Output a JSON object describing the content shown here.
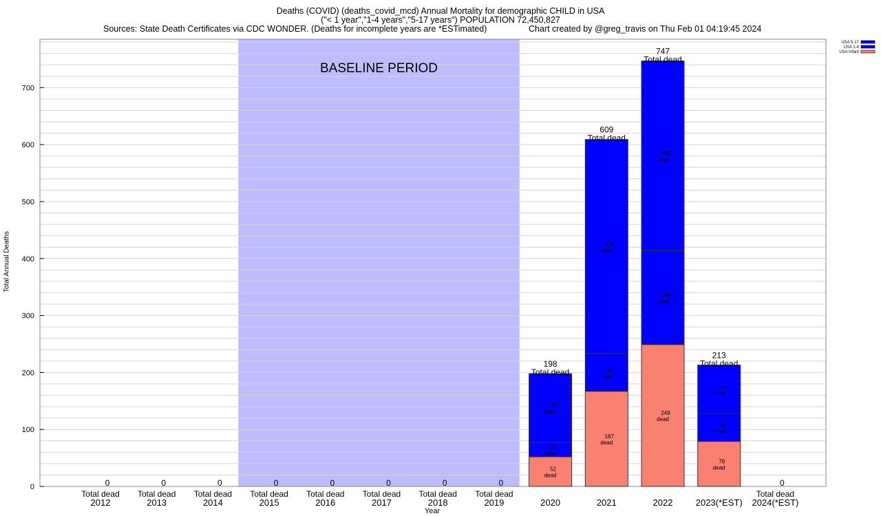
{
  "chart_data": {
    "type": "bar",
    "stacked": true,
    "title": "Deaths (COVID) (deaths_covid_mcd) Annual Mortality for demographic CHILD in USA",
    "subtitle": "(\"< 1 year\",\"1-4 years\",\"5-17 years\") POPULATION 72,450,827",
    "source": "Sources: State Death Certificates via CDC WONDER. (Deaths for incomplete years are *ESTimated)",
    "credit": "Chart created by @greg_travis on Thu Feb 01 04:19:45 2024",
    "xlabel": "Year",
    "ylabel": "Total Annual Deaths",
    "ylim": [
      0,
      785
    ],
    "yticks": [
      0,
      100,
      200,
      300,
      400,
      500,
      600,
      700
    ],
    "grid": true,
    "legend_position": "top-right",
    "categories": [
      "2012",
      "2013",
      "2014",
      "2015",
      "2016",
      "2017",
      "2018",
      "2019",
      "2020",
      "2021",
      "2022",
      "2023(*EST)",
      "2024(*EST)"
    ],
    "series": [
      {
        "name": "USA Infant",
        "color": "#fa8072",
        "values": [
          0,
          0,
          0,
          0,
          0,
          0,
          0,
          0,
          52,
          167,
          249,
          79,
          0
        ]
      },
      {
        "name": "USA 1-4",
        "color": "#0000ff",
        "values": [
          0,
          0,
          0,
          0,
          0,
          0,
          0,
          0,
          25,
          66,
          165,
          49,
          0
        ]
      },
      {
        "name": "USA 5-17",
        "color": "#0000ff",
        "values": [
          0,
          0,
          0,
          0,
          0,
          0,
          0,
          0,
          121,
          376,
          333,
          85,
          0
        ]
      }
    ],
    "totals": [
      0,
      0,
      0,
      0,
      0,
      0,
      0,
      0,
      198,
      609,
      747,
      213,
      0
    ],
    "total_label": "Total dead",
    "segment_suffix": "dead",
    "annotation": {
      "text": "BASELINE PERIOD",
      "from": "2015",
      "to": "2019",
      "color": "#bcbcff"
    }
  }
}
